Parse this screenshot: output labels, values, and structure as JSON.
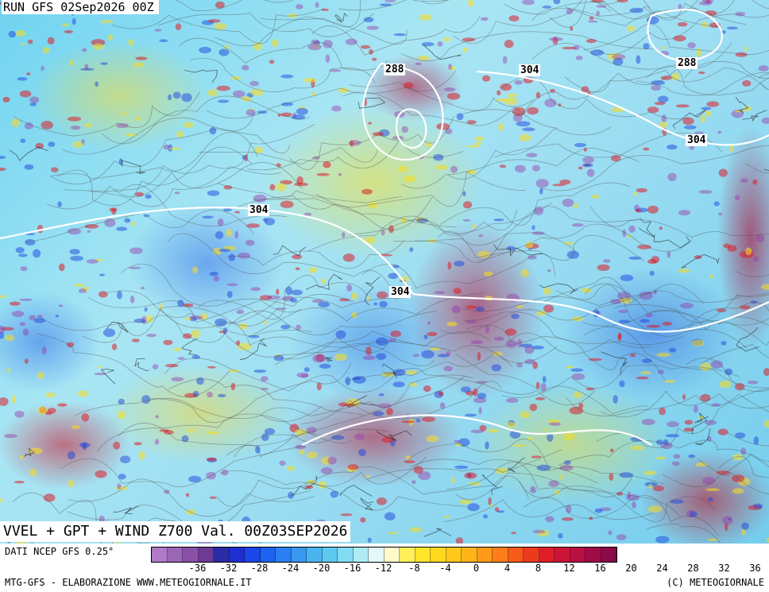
{
  "header": {
    "run_title": "RUN GFS 02Sep2026 00Z"
  },
  "map": {
    "variable_title": "VVEL + GPT + WIND Z700 Val. 00Z03SEP2026",
    "contour_labels": [
      "288",
      "304",
      "288",
      "304",
      "304",
      "304"
    ]
  },
  "legend": {
    "source_label": "DATI NCEP GFS 0.25°",
    "tick_labels": [
      "-36",
      "-32",
      "-28",
      "-24",
      "-20",
      "-16",
      "-12",
      "-8",
      "-4",
      "0",
      "4",
      "8",
      "12",
      "16",
      "20",
      "24",
      "28",
      "32",
      "36"
    ],
    "colors": [
      "#b07ac8",
      "#9a66b8",
      "#8a4fa6",
      "#6d3a95",
      "#2a2ca6",
      "#1e2fd0",
      "#1a46e8",
      "#1e62f0",
      "#2a7ff2",
      "#3a98f0",
      "#4ab4f0",
      "#5ccaf0",
      "#82dcf2",
      "#b0ecf6",
      "#e4f8fa",
      "#fffac8",
      "#fff05a",
      "#ffe62a",
      "#ffd81e",
      "#ffc81a",
      "#ffb41a",
      "#ff9a1a",
      "#ff7e1a",
      "#f85a1a",
      "#ec3a1e",
      "#e01e2a",
      "#cc1436",
      "#b81040",
      "#a00c46",
      "#8a0a4a"
    ]
  },
  "footer": {
    "left": "MTG-GFS - ELABORAZIONE WWW.METEOGIORNALE.IT",
    "right": "(C) METEOGIORNALE"
  }
}
